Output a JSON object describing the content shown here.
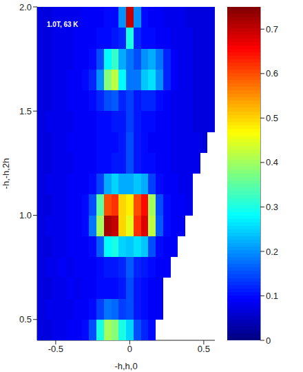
{
  "chart_data": {
    "type": "heatmap",
    "annotation": "1.0T, 63 K",
    "x_label": "-h,h,0",
    "y_label": "-h,-h,2h",
    "xlim": [
      -0.625,
      0.575
    ],
    "xticks": [
      -0.5,
      0,
      0.5
    ],
    "ylim": [
      0.4,
      2.0
    ],
    "yticks": [
      0.5,
      {
        "value": 1,
        "label": "1.0"
      },
      1.5,
      {
        "value": 2,
        "label": "2.0"
      }
    ],
    "x": [
      -0.6,
      -0.55,
      -0.5,
      -0.45,
      -0.4,
      -0.35,
      -0.3,
      -0.25,
      -0.2,
      -0.15,
      -0.1,
      -0.05,
      0,
      0.05,
      0.1,
      0.15,
      0.2,
      0.25,
      0.3,
      0.35,
      0.4,
      0.45,
      0.5,
      0.55
    ],
    "y": [
      0.45,
      0.55,
      0.65,
      0.75,
      0.85,
      0.95,
      1.05,
      1.15,
      1.25,
      1.35,
      1.45,
      1.55,
      1.65,
      1.75,
      1.85,
      1.95
    ],
    "values": [
      [
        0.07,
        0.07,
        0.08,
        0.08,
        0.09,
        0.09,
        0.1,
        0.15,
        0.3,
        0.4,
        0.38,
        0.3,
        0.25,
        0.15,
        0.12,
        0.1,
        null,
        null,
        null,
        null,
        null,
        null,
        null,
        null
      ],
      [
        0.07,
        0.08,
        0.08,
        0.08,
        0.08,
        0.09,
        0.09,
        0.1,
        0.14,
        0.18,
        0.17,
        0.14,
        0.15,
        0.11,
        0.1,
        0.09,
        0.09,
        null,
        null,
        null,
        null,
        null,
        null,
        null
      ],
      [
        0.07,
        0.07,
        0.08,
        0.08,
        0.09,
        0.08,
        0.09,
        0.09,
        0.1,
        0.1,
        0.1,
        0.11,
        0.15,
        0.11,
        0.1,
        0.09,
        0.09,
        null,
        null,
        null,
        null,
        null,
        null,
        null
      ],
      [
        0.07,
        0.08,
        0.08,
        0.09,
        0.08,
        0.09,
        0.09,
        0.09,
        0.1,
        0.11,
        0.11,
        0.12,
        0.16,
        0.12,
        0.11,
        0.1,
        0.09,
        0.09,
        null,
        null,
        null,
        null,
        null,
        null
      ],
      [
        0.07,
        0.07,
        0.08,
        0.08,
        0.09,
        0.09,
        0.09,
        0.1,
        0.16,
        0.28,
        0.3,
        0.25,
        0.24,
        0.26,
        0.24,
        0.15,
        0.1,
        0.09,
        0.09,
        null,
        null,
        null,
        null,
        null
      ],
      [
        0.07,
        0.08,
        0.08,
        0.08,
        0.09,
        0.09,
        0.1,
        0.18,
        0.4,
        0.72,
        0.7,
        0.5,
        0.45,
        0.62,
        0.68,
        0.42,
        0.16,
        0.1,
        0.09,
        0.09,
        null,
        null,
        null,
        null
      ],
      [
        0.07,
        0.07,
        0.08,
        0.08,
        0.09,
        0.09,
        0.1,
        0.15,
        0.35,
        0.6,
        0.62,
        0.5,
        0.48,
        0.6,
        0.65,
        0.4,
        0.15,
        0.1,
        0.09,
        0.09,
        0.08,
        null,
        null,
        null
      ],
      [
        0.07,
        0.08,
        0.08,
        0.08,
        0.09,
        0.09,
        0.09,
        0.1,
        0.14,
        0.22,
        0.25,
        0.22,
        0.22,
        0.24,
        0.22,
        0.14,
        0.1,
        0.09,
        0.09,
        0.08,
        0.08,
        null,
        null,
        null
      ],
      [
        0.07,
        0.07,
        0.08,
        0.08,
        0.08,
        0.09,
        0.09,
        0.09,
        0.1,
        0.1,
        0.11,
        0.11,
        0.15,
        0.11,
        0.1,
        0.1,
        0.09,
        0.09,
        0.08,
        0.08,
        0.08,
        0.08,
        null,
        null
      ],
      [
        0.07,
        0.07,
        0.08,
        0.08,
        0.09,
        0.09,
        0.09,
        0.09,
        0.1,
        0.1,
        0.1,
        0.11,
        0.15,
        0.11,
        0.1,
        0.09,
        0.09,
        0.09,
        0.08,
        0.08,
        0.08,
        0.08,
        0.07,
        null
      ],
      [
        0.07,
        0.08,
        0.08,
        0.08,
        0.08,
        0.09,
        0.09,
        0.09,
        0.1,
        0.1,
        0.11,
        0.11,
        0.14,
        0.11,
        0.1,
        0.1,
        0.09,
        0.09,
        0.08,
        0.08,
        0.08,
        0.07,
        0.07,
        0.07
      ],
      [
        0.07,
        0.07,
        0.08,
        0.08,
        0.09,
        0.09,
        0.09,
        0.1,
        0.12,
        0.15,
        0.16,
        0.12,
        0.14,
        0.11,
        0.12,
        0.12,
        0.1,
        0.09,
        0.08,
        0.08,
        0.08,
        0.07,
        0.07,
        0.07
      ],
      [
        0.07,
        0.07,
        0.08,
        0.08,
        0.09,
        0.09,
        0.1,
        0.12,
        0.2,
        0.38,
        0.42,
        0.28,
        0.18,
        0.18,
        0.24,
        0.26,
        0.2,
        0.12,
        0.09,
        0.08,
        0.08,
        0.07,
        0.07,
        0.07
      ],
      [
        0.07,
        0.07,
        0.08,
        0.08,
        0.08,
        0.09,
        0.09,
        0.1,
        0.15,
        0.28,
        0.32,
        0.22,
        0.18,
        0.15,
        0.2,
        0.22,
        0.18,
        0.12,
        0.09,
        0.08,
        0.08,
        0.07,
        0.07,
        0.07
      ],
      [
        0.07,
        0.07,
        0.08,
        0.08,
        0.08,
        0.09,
        0.09,
        0.09,
        0.1,
        0.1,
        0.11,
        0.12,
        0.3,
        0.12,
        0.1,
        0.1,
        0.09,
        0.09,
        0.08,
        0.08,
        0.08,
        0.07,
        0.07,
        0.07
      ],
      [
        0.07,
        0.07,
        0.08,
        0.08,
        0.08,
        0.08,
        0.09,
        0.09,
        0.09,
        0.1,
        0.1,
        0.2,
        0.7,
        0.2,
        0.1,
        0.09,
        0.09,
        0.08,
        0.08,
        0.08,
        0.07,
        0.07,
        0.07,
        0.07
      ]
    ],
    "colorbar": {
      "range": [
        0,
        0.75
      ],
      "ticks": [
        0,
        0.1,
        0.2,
        0.3,
        0.4,
        0.5,
        0.6,
        0.7
      ]
    }
  }
}
